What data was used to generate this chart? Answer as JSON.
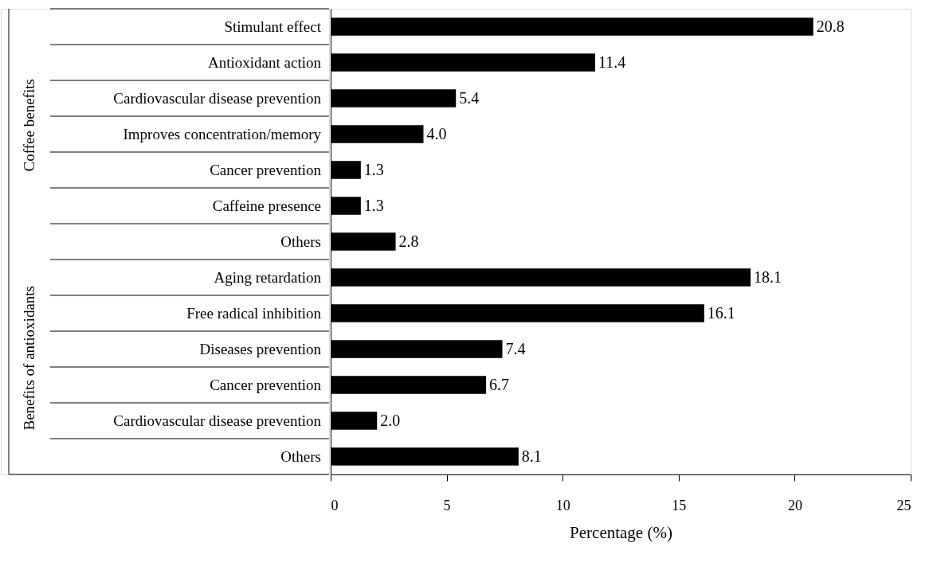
{
  "chart_data": {
    "type": "bar",
    "orientation": "horizontal",
    "categories": [
      "Stimulant effect",
      "Antioxidant action",
      "Cardiovascular disease prevention",
      "Improves concentration/memory",
      "Cancer prevention",
      "Caffeine presence",
      "Others",
      "Aging retardation",
      "Free radical inhibition",
      "Diseases prevention",
      "Cancer prevention",
      "Cardiovascular disease prevention",
      "Others"
    ],
    "values": [
      20.8,
      11.4,
      5.4,
      4.0,
      1.3,
      1.3,
      2.8,
      18.1,
      16.1,
      7.4,
      6.7,
      2.0,
      8.1
    ],
    "value_labels": [
      "20.8",
      "11.4",
      "5.4",
      "4.0",
      "1.3",
      "1.3",
      "2.8",
      "18.1",
      "16.1",
      "7.4",
      "6.7",
      "2.0",
      "8.1"
    ],
    "color": "#000000",
    "xlabel": "Percentage (%)",
    "xlim": [
      0,
      25
    ],
    "xticks": [
      0,
      5,
      10,
      15,
      20,
      25
    ],
    "grid": false,
    "annotations": [
      "Coffee benefits",
      "Benefits of antioxidants"
    ]
  }
}
